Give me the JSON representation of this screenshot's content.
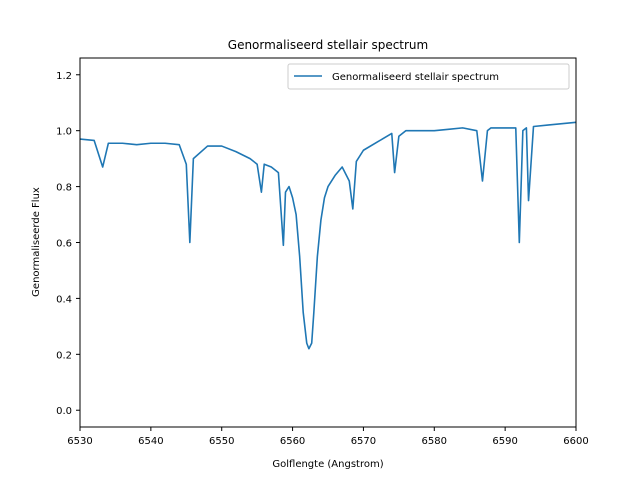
{
  "chart_data": {
    "type": "line",
    "title": "Genormaliseerd stellair spectrum",
    "xlabel": "Golflengte (Angstrom)",
    "ylabel": "Genormaliseerde Flux",
    "xlim": [
      6530,
      6600
    ],
    "ylim": [
      -0.06,
      1.26
    ],
    "x_ticks": [
      6530,
      6540,
      6550,
      6560,
      6570,
      6580,
      6590,
      6600
    ],
    "y_ticks": [
      0.0,
      0.2,
      0.4,
      0.6,
      0.8,
      1.0,
      1.2
    ],
    "grid": false,
    "legend_position": "top-right",
    "series": [
      {
        "name": "Genormaliseerd stellair spectrum",
        "color": "#1f77b4",
        "x": [
          6530,
          6532,
          6533.2,
          6534,
          6536,
          6538,
          6540,
          6542,
          6544,
          6545,
          6545.5,
          6546,
          6548,
          6550,
          6552,
          6554,
          6555,
          6555.6,
          6556,
          6557,
          6558,
          6558.7,
          6559,
          6559.5,
          6560,
          6560.5,
          6561,
          6561.5,
          6562,
          6562.3,
          6562.7,
          6563,
          6563.5,
          6564,
          6564.5,
          6565,
          6566,
          6567,
          6568,
          6568.5,
          6569,
          6570,
          6572,
          6574,
          6574.4,
          6575,
          6576,
          6578,
          6580,
          6582,
          6584,
          6586,
          6586.8,
          6587.5,
          6588,
          6590,
          6591.5,
          6592,
          6592.5,
          6593,
          6593.3,
          6594,
          6596,
          6598,
          6600
        ],
        "y": [
          0.97,
          0.965,
          0.87,
          0.955,
          0.955,
          0.95,
          0.955,
          0.955,
          0.95,
          0.88,
          0.6,
          0.9,
          0.945,
          0.945,
          0.925,
          0.9,
          0.88,
          0.78,
          0.88,
          0.87,
          0.85,
          0.59,
          0.78,
          0.8,
          0.76,
          0.7,
          0.55,
          0.35,
          0.24,
          0.22,
          0.24,
          0.35,
          0.55,
          0.68,
          0.76,
          0.8,
          0.84,
          0.87,
          0.82,
          0.72,
          0.89,
          0.93,
          0.96,
          0.99,
          0.85,
          0.98,
          1.0,
          1.0,
          1.0,
          1.005,
          1.01,
          1.0,
          0.82,
          1.0,
          1.01,
          1.01,
          1.01,
          0.6,
          1.0,
          1.01,
          0.75,
          1.015,
          1.02,
          1.025,
          1.03
        ]
      }
    ]
  }
}
